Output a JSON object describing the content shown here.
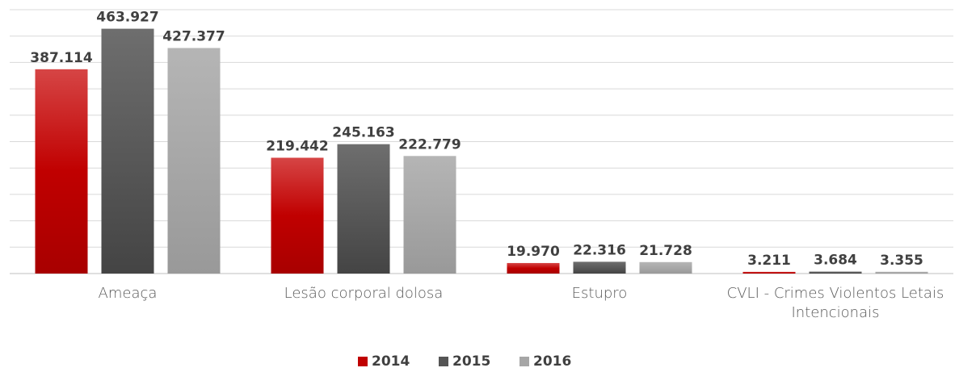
{
  "chart_data": {
    "type": "bar",
    "categories": [
      "Ameaça",
      "Lesão corporal dolosa",
      "Estupro",
      "CVLI - Crimes Violentos Letais Intencionais"
    ],
    "series": [
      {
        "name": "2014",
        "color": "#c00000",
        "values": [
          387114,
          219442,
          19970,
          3211
        ],
        "value_labels": [
          "387.114",
          "219.442",
          "19.970",
          "3.211"
        ]
      },
      {
        "name": "2015",
        "color": "#555555",
        "values": [
          463927,
          245163,
          22316,
          3684
        ],
        "value_labels": [
          "463.927",
          "245.163",
          "22.316",
          "3.684"
        ]
      },
      {
        "name": "2016",
        "color": "#a6a6a6",
        "values": [
          427377,
          222779,
          21728,
          3355
        ],
        "value_labels": [
          "427.377",
          "222.779",
          "21.728",
          "3.355"
        ]
      }
    ],
    "ylim": [
      0,
      500000
    ],
    "yticks": [
      0,
      50000,
      100000,
      150000,
      200000,
      250000,
      300000,
      350000,
      400000,
      450000,
      500000
    ],
    "grid": true,
    "legend": "bottom"
  }
}
